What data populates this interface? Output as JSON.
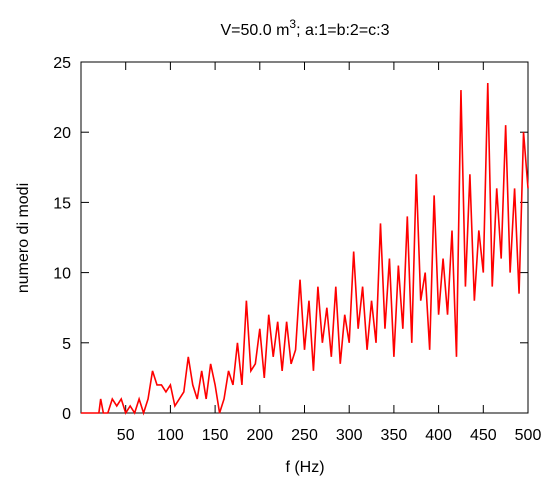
{
  "chart_data": {
    "type": "line",
    "title": {
      "text": "V=50.0 m",
      "superscript": "3",
      "rest": "; a:1=b:2=c:3"
    },
    "xlabel": "f (Hz)",
    "ylabel": "numero di modi",
    "x": [
      0,
      5,
      10,
      15,
      20,
      22,
      25,
      30,
      35,
      40,
      45,
      50,
      55,
      60,
      65,
      70,
      75,
      80,
      85,
      90,
      95,
      100,
      105,
      110,
      115,
      120,
      125,
      130,
      135,
      140,
      145,
      150,
      155,
      160,
      165,
      170,
      175,
      180,
      185,
      190,
      195,
      200,
      205,
      210,
      215,
      220,
      225,
      230,
      235,
      240,
      245,
      250,
      255,
      260,
      265,
      270,
      275,
      280,
      285,
      290,
      295,
      300,
      305,
      310,
      315,
      320,
      325,
      330,
      335,
      340,
      345,
      350,
      355,
      360,
      365,
      370,
      375,
      380,
      385,
      390,
      395,
      400,
      405,
      410,
      415,
      420,
      425,
      430,
      435,
      440,
      445,
      450,
      455,
      460,
      465,
      470,
      475,
      480,
      485,
      490,
      495,
      500
    ],
    "series": [
      {
        "name": "modi",
        "color": "#ff0000",
        "values": [
          0,
          0,
          0,
          0,
          0,
          1,
          0,
          0,
          1,
          0.5,
          1,
          0,
          0.5,
          0,
          1,
          0,
          1,
          3,
          2,
          2,
          1.5,
          2,
          0.5,
          1,
          1.5,
          4,
          2,
          1,
          3,
          1,
          3.5,
          2,
          0,
          1,
          3,
          2,
          5,
          2,
          8,
          3,
          3.5,
          6,
          2.5,
          7,
          4,
          6.5,
          3,
          6.5,
          3.5,
          4.5,
          9.5,
          4.5,
          8,
          3,
          9,
          5,
          7.5,
          4,
          9,
          3.5,
          7,
          5,
          11.5,
          6,
          9,
          4.5,
          8,
          5,
          13.5,
          6,
          11,
          4,
          10.5,
          6,
          14,
          5,
          17,
          8,
          10,
          4.5,
          15.5,
          7,
          11,
          7,
          13,
          4,
          23,
          9,
          17,
          8,
          13,
          10,
          23.5,
          9,
          16,
          11,
          20.5,
          10,
          16,
          8.5,
          20,
          16
        ]
      }
    ],
    "xlim": [
      0,
      500
    ],
    "ylim": [
      0,
      25
    ],
    "xticks": [
      50,
      100,
      150,
      200,
      250,
      300,
      350,
      400,
      450,
      500
    ],
    "yticks": [
      0,
      5,
      10,
      15,
      20,
      25
    ]
  }
}
